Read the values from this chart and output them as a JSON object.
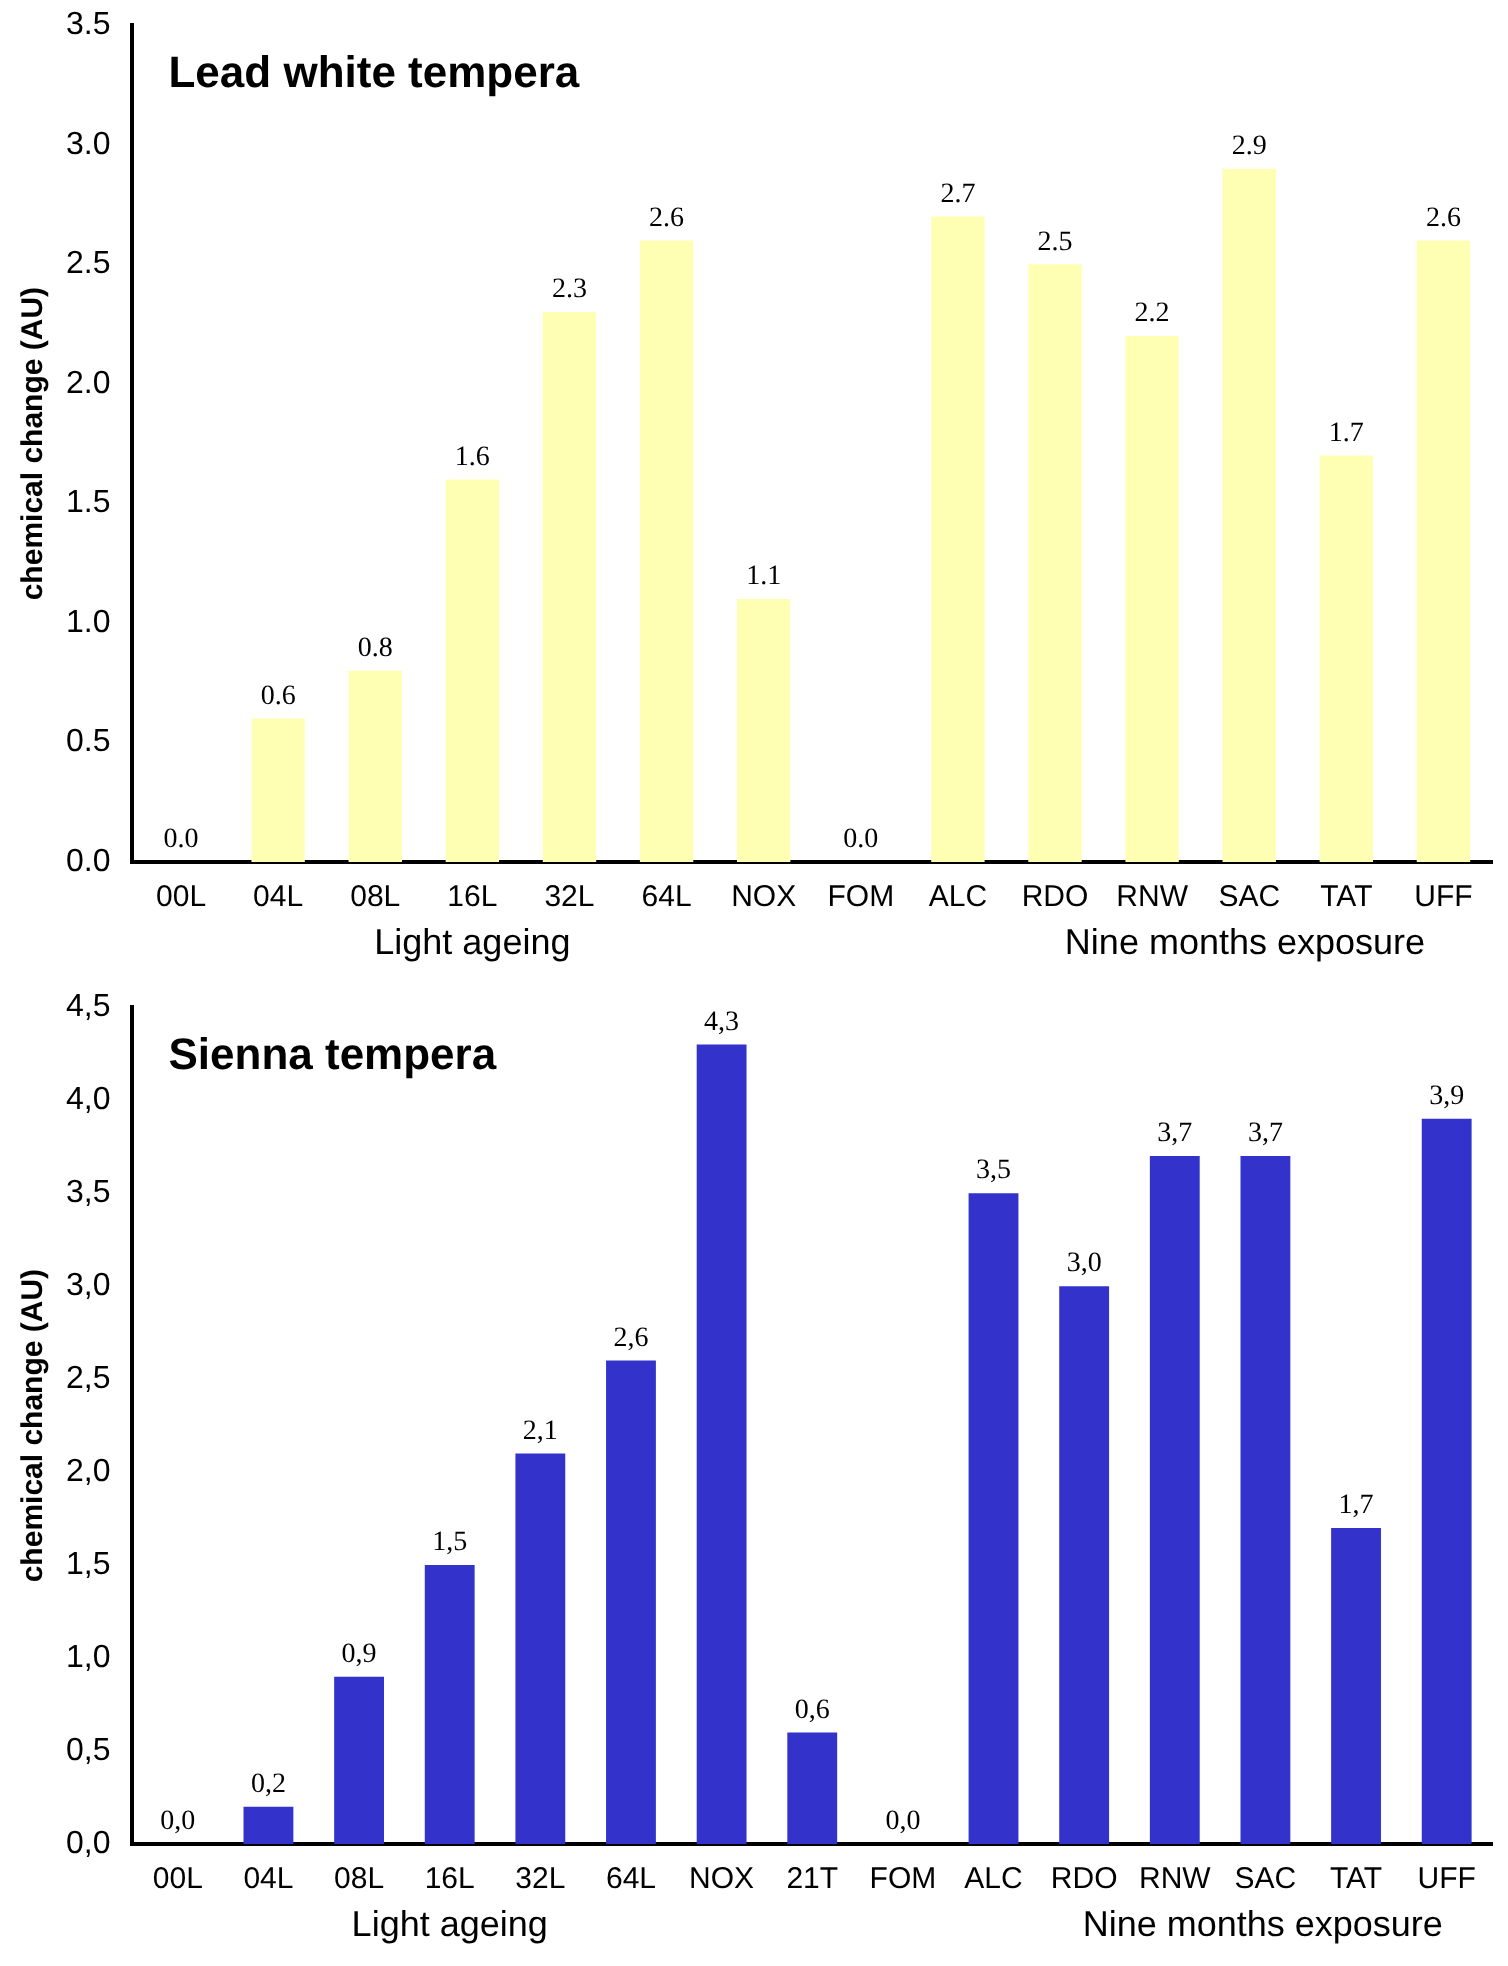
{
  "chart_data": [
    {
      "type": "bar",
      "title": "Lead white tempera",
      "ylabel": "chemical change (AU)",
      "categories": [
        "00L",
        "04L",
        "08L",
        "16L",
        "32L",
        "64L",
        "NOX",
        "FOM",
        "ALC",
        "RDO",
        "RNW",
        "SAC",
        "TAT",
        "UFF"
      ],
      "values": [
        0.0,
        0.6,
        0.8,
        1.6,
        2.3,
        2.6,
        1.1,
        0.0,
        2.7,
        2.5,
        2.2,
        2.9,
        1.7,
        2.6
      ],
      "value_labels": [
        "0.0",
        "0.6",
        "0.8",
        "1.6",
        "2.3",
        "2.6",
        "1.1",
        "0.0",
        "2.7",
        "2.5",
        "2.2",
        "2.9",
        "1.7",
        "2.6"
      ],
      "color": "#ffffb4",
      "ylim": [
        0,
        3.5
      ],
      "yticks": [
        {
          "value": 0,
          "label": "0.0"
        },
        {
          "value": 0.5,
          "label": "0.5"
        },
        {
          "value": 1,
          "label": "1.0"
        },
        {
          "value": 1.5,
          "label": "1.5"
        },
        {
          "value": 2,
          "label": "2.0"
        },
        {
          "value": 2.5,
          "label": "2.5"
        },
        {
          "value": 3,
          "label": "3.0"
        },
        {
          "value": 3.5,
          "label": "3.5"
        }
      ],
      "grid": false,
      "legend": false,
      "annotations": [
        "Light ageing",
        "Nine months exposure"
      ]
    },
    {
      "type": "bar",
      "title": "Sienna tempera",
      "ylabel": "chemical change (AU)",
      "categories": [
        "00L",
        "04L",
        "08L",
        "16L",
        "32L",
        "64L",
        "NOX",
        "21T",
        "FOM",
        "ALC",
        "RDO",
        "RNW",
        "SAC",
        "TAT",
        "UFF"
      ],
      "values": [
        0.0,
        0.2,
        0.9,
        1.5,
        2.1,
        2.6,
        4.3,
        0.6,
        0.0,
        3.5,
        3.0,
        3.7,
        3.7,
        1.7,
        3.9
      ],
      "value_labels": [
        "0,0",
        "0,2",
        "0,9",
        "1,5",
        "2,1",
        "2,6",
        "4,3",
        "0,6",
        "0,0",
        "3,5",
        "3,0",
        "3,7",
        "3,7",
        "1,7",
        "3,9"
      ],
      "color": "#3333cc",
      "ylim": [
        0,
        4.5
      ],
      "yticks": [
        {
          "value": 0,
          "label": "0,0"
        },
        {
          "value": 0.5,
          "label": "0,5"
        },
        {
          "value": 1,
          "label": "1,0"
        },
        {
          "value": 1.5,
          "label": "1,5"
        },
        {
          "value": 2,
          "label": "2,0"
        },
        {
          "value": 2.5,
          "label": "2,5"
        },
        {
          "value": 3,
          "label": "3,0"
        },
        {
          "value": 3.5,
          "label": "3,5"
        },
        {
          "value": 4,
          "label": "4,0"
        },
        {
          "value": 4.5,
          "label": "4,5"
        }
      ],
      "grid": false,
      "legend": false,
      "annotations": [
        "Light ageing",
        "Nine months exposure"
      ]
    }
  ]
}
